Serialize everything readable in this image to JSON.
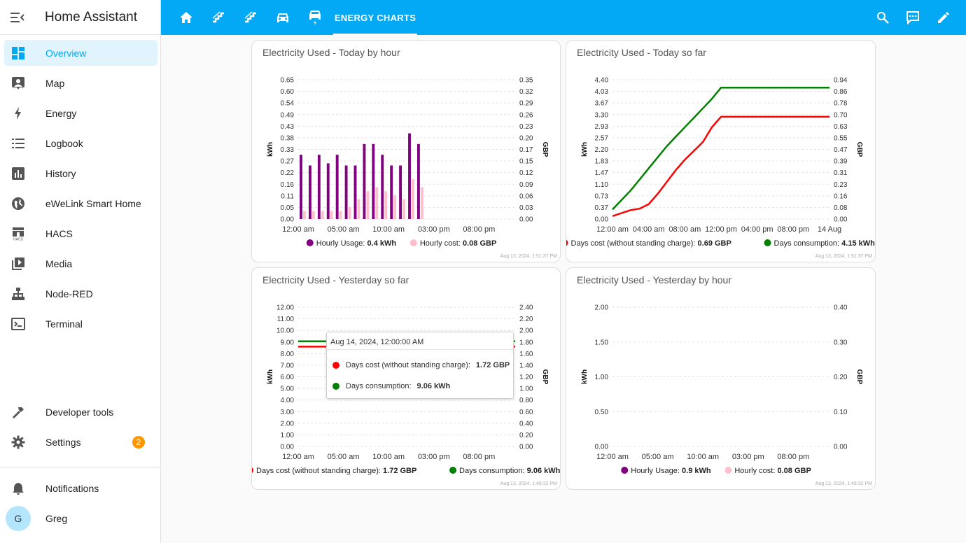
{
  "app": {
    "title": "Home Assistant"
  },
  "sidebar": {
    "items": [
      {
        "label": "Overview",
        "icon": "overview-icon"
      },
      {
        "label": "Map",
        "icon": "map-icon"
      },
      {
        "label": "Energy",
        "icon": "energy-icon"
      },
      {
        "label": "Logbook",
        "icon": "logbook-icon"
      },
      {
        "label": "History",
        "icon": "history-icon"
      },
      {
        "label": "eWeLink Smart Home",
        "icon": "globe-icon"
      },
      {
        "label": "HACS",
        "icon": "hacs-icon"
      },
      {
        "label": "Media",
        "icon": "media-icon"
      },
      {
        "label": "Node-RED",
        "icon": "sitemap-icon"
      },
      {
        "label": "Terminal",
        "icon": "terminal-icon"
      }
    ],
    "developer_tools": "Developer tools",
    "settings": "Settings",
    "settings_badge": "2",
    "notifications": "Notifications",
    "user": {
      "name": "Greg",
      "initial": "G"
    }
  },
  "header": {
    "icons": [
      "home-icon",
      "stairs-icon",
      "stairs-icon",
      "car-icon",
      "car-charging-icon"
    ],
    "active_tab": "ENERGY CHARTS",
    "right_icons": [
      "search-icon",
      "assist-icon",
      "edit-icon"
    ],
    "accent": "#03a9f4"
  },
  "colors": {
    "purple": "#800080",
    "pink": "#ffc0cb",
    "red": "#ff0000",
    "green": "#008000"
  },
  "cards": [
    {
      "title": "Electricity Used - Today by hour",
      "timestamp": "Aug 13, 2024, 1:51:37 PM",
      "legend": [
        {
          "label": "Hourly Usage:",
          "value": "0.4 kWh",
          "color": "#800080"
        },
        {
          "label": "Hourly cost:",
          "value": "0.08 GBP",
          "color": "#ffc0cb"
        }
      ]
    },
    {
      "title": "Electricity Used - Today so far",
      "timestamp": "Aug 13, 2024, 1:51:37 PM",
      "legend": [
        {
          "label": "Days cost (without standing charge):",
          "value": "0.69 GBP",
          "color": "#ff0000"
        },
        {
          "label": "Days consumption:",
          "value": "4.15 kWh",
          "color": "#008000"
        }
      ]
    },
    {
      "title": "Electricity Used - Yesterday so far",
      "timestamp": "Aug 13, 2024, 1:48:32 PM",
      "legend": [
        {
          "label": "Days cost (without standing charge):",
          "value": "1.72 GBP",
          "color": "#ff0000"
        },
        {
          "label": "Days consumption:",
          "value": "9.06 kWh",
          "color": "#008000"
        }
      ],
      "tooltip": {
        "header": "Aug 14, 2024, 12:00:00 AM",
        "rows": [
          {
            "label": "Days cost (without standing charge):",
            "value": "1.72 GBP",
            "color": "#ff0000"
          },
          {
            "label": "Days consumption:",
            "value": "9.06 kWh",
            "color": "#008000"
          }
        ]
      }
    },
    {
      "title": "Electricity Used - Yesterday by hour",
      "timestamp": "Aug 13, 2024, 1:48:32 PM",
      "legend": [
        {
          "label": "Hourly Usage:",
          "value": "0.9 kWh",
          "color": "#800080"
        },
        {
          "label": "Hourly cost:",
          "value": "0.08 GBP",
          "color": "#ffc0cb"
        }
      ]
    }
  ],
  "chart_data": [
    {
      "type": "bar",
      "ylabel": "kWh",
      "y2label": "GBP",
      "yticks": [
        "0.00",
        "0.05",
        "0.11",
        "0.16",
        "0.22",
        "0.27",
        "0.33",
        "0.38",
        "0.43",
        "0.49",
        "0.54",
        "0.60",
        "0.65"
      ],
      "y2ticks": [
        "0.00",
        "0.03",
        "0.06",
        "0.09",
        "0.12",
        "0.15",
        "0.17",
        "0.20",
        "0.23",
        "0.26",
        "0.29",
        "0.32",
        "0.35"
      ],
      "ylim": [
        0,
        0.65
      ],
      "y2lim": [
        0,
        0.35
      ],
      "xlim": [
        0,
        24
      ],
      "xticks": [
        {
          "x": 0,
          "label": "12:00 am"
        },
        {
          "x": 5,
          "label": "05:00 am"
        },
        {
          "x": 10,
          "label": "10:00 am"
        },
        {
          "x": 15,
          "label": "03:00 pm"
        },
        {
          "x": 20,
          "label": "08:00 pm"
        }
      ],
      "series": [
        {
          "name": "Hourly Usage",
          "axis": "y",
          "x": [
            0,
            1,
            2,
            3,
            4,
            5,
            6,
            7,
            8,
            9,
            10,
            11,
            12,
            13
          ],
          "values": [
            0.3,
            0.25,
            0.3,
            0.26,
            0.3,
            0.25,
            0.25,
            0.35,
            0.35,
            0.3,
            0.25,
            0.25,
            0.4,
            0.35
          ]
        },
        {
          "name": "Hourly cost",
          "axis": "y2",
          "x": [
            0,
            1,
            2,
            3,
            4,
            5,
            6,
            7,
            8,
            9,
            10,
            11,
            12,
            13
          ],
          "values": [
            0.02,
            0.02,
            0.02,
            0.02,
            0.02,
            0.03,
            0.05,
            0.07,
            0.08,
            0.07,
            0.06,
            0.05,
            0.1,
            0.08
          ]
        }
      ]
    },
    {
      "type": "line",
      "ylabel": "kWh",
      "y2label": "GBP",
      "yticks": [
        "0.00",
        "0.37",
        "0.73",
        "1.10",
        "1.47",
        "1.83",
        "2.20",
        "2.57",
        "2.93",
        "3.30",
        "3.67",
        "4.03",
        "4.40"
      ],
      "y2ticks": [
        "0.00",
        "0.08",
        "0.16",
        "0.23",
        "0.31",
        "0.39",
        "0.47",
        "0.55",
        "0.63",
        "0.70",
        "0.78",
        "0.86",
        "0.94"
      ],
      "ylim": [
        0,
        4.4
      ],
      "y2lim": [
        0,
        0.94
      ],
      "xlim": [
        0,
        24
      ],
      "xticks": [
        {
          "x": 0,
          "label": "12:00 am"
        },
        {
          "x": 4,
          "label": "04:00 am"
        },
        {
          "x": 8,
          "label": "08:00 am"
        },
        {
          "x": 12,
          "label": "12:00 pm"
        },
        {
          "x": 16,
          "label": "04:00 pm"
        },
        {
          "x": 20,
          "label": "08:00 pm"
        },
        {
          "x": 24,
          "label": "14 Aug"
        }
      ],
      "series": [
        {
          "name": "Days consumption",
          "axis": "y",
          "x": [
            0,
            1,
            2,
            3,
            4,
            5,
            6,
            7,
            8,
            9,
            10,
            11,
            12,
            13,
            14,
            24
          ],
          "values": [
            0.3,
            0.6,
            0.9,
            1.25,
            1.6,
            1.95,
            2.3,
            2.6,
            2.9,
            3.2,
            3.5,
            3.8,
            4.15,
            4.15,
            4.15,
            4.15
          ]
        },
        {
          "name": "Days cost (without standing charge)",
          "axis": "y2",
          "x": [
            0,
            1,
            2,
            3,
            4,
            5,
            6,
            7,
            8,
            9,
            10,
            11,
            12,
            13,
            14,
            24
          ],
          "values": [
            0.02,
            0.04,
            0.06,
            0.07,
            0.1,
            0.17,
            0.25,
            0.33,
            0.4,
            0.46,
            0.52,
            0.62,
            0.69,
            0.69,
            0.69,
            0.69
          ]
        }
      ]
    },
    {
      "type": "line",
      "ylabel": "kWh",
      "y2label": "GBP",
      "yticks": [
        "0.00",
        "1.00",
        "2.00",
        "3.00",
        "4.00",
        "5.00",
        "6.00",
        "7.00",
        "8.00",
        "9.00",
        "10.00",
        "11.00",
        "12.00"
      ],
      "y2ticks": [
        "0.00",
        "0.20",
        "0.40",
        "0.60",
        "0.80",
        "1.00",
        "1.20",
        "1.40",
        "1.60",
        "1.80",
        "2.00",
        "2.20",
        "2.40"
      ],
      "ylim": [
        0,
        12
      ],
      "y2lim": [
        0,
        2.4
      ],
      "xlim": [
        0,
        24
      ],
      "xticks": [
        {
          "x": 0,
          "label": "12:00 am"
        },
        {
          "x": 5,
          "label": "05:00 am"
        },
        {
          "x": 10,
          "label": "10:00 am"
        },
        {
          "x": 15,
          "label": "03:00 pm"
        },
        {
          "x": 20,
          "label": "08:00 pm"
        }
      ],
      "series": [
        {
          "name": "Days consumption",
          "axis": "y",
          "x": [
            0,
            24
          ],
          "values": [
            9.06,
            9.06
          ]
        },
        {
          "name": "Days cost (without standing charge)",
          "axis": "y2",
          "x": [
            0,
            24
          ],
          "values": [
            1.72,
            1.72
          ]
        }
      ]
    },
    {
      "type": "bar",
      "ylabel": "kWh",
      "y2label": "GBP",
      "yticks": [
        "0.00",
        "0.50",
        "1.00",
        "1.50",
        "2.00"
      ],
      "y2ticks": [
        "0.00",
        "0.10",
        "0.20",
        "0.30",
        "0.40"
      ],
      "ylim": [
        0,
        2
      ],
      "y2lim": [
        0,
        0.4
      ],
      "xlim": [
        0,
        24
      ],
      "xticks": [
        {
          "x": 0,
          "label": "12:00 am"
        },
        {
          "x": 5,
          "label": "05:00 am"
        },
        {
          "x": 10,
          "label": "10:00 am"
        },
        {
          "x": 15,
          "label": "03:00 pm"
        },
        {
          "x": 20,
          "label": "08:00 pm"
        }
      ],
      "series": [
        {
          "name": "Hourly Usage",
          "axis": "y",
          "x": [],
          "values": []
        },
        {
          "name": "Hourly cost",
          "axis": "y2",
          "x": [],
          "values": []
        }
      ]
    }
  ]
}
